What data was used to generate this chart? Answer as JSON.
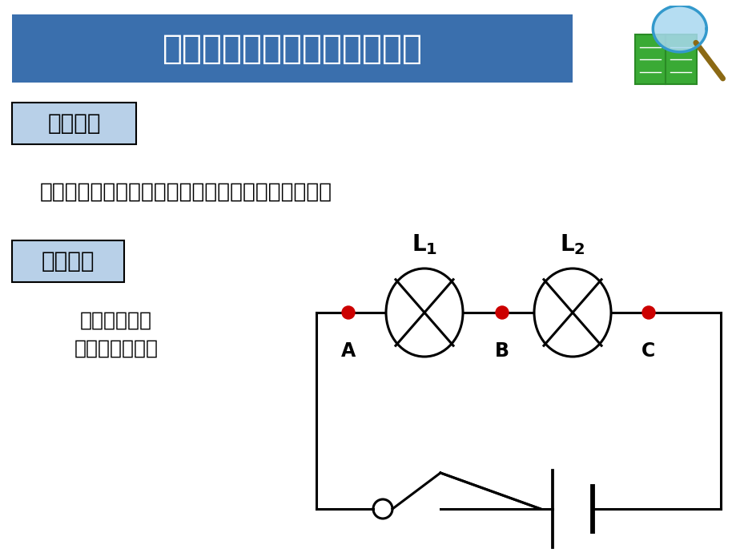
{
  "bg_color": "#ffffff",
  "title_text": "一、探究串联电路电压的规律",
  "title_bg": "#3a6fad",
  "title_text_color": "#ffffff",
  "label1_text": "猜想假设",
  "label1_bg": "#b8d0e8",
  "label2_text": "设计实验",
  "label2_bg": "#b8d0e8",
  "question_text": "串联电路中各部分电路的电压与总电压有什么关系？",
  "desc_text1": "设计实验电路",
  "desc_text2": "并画出电路图。",
  "node_color": "#cc0000",
  "wire_color": "#000000",
  "wire_lw": 2.2
}
